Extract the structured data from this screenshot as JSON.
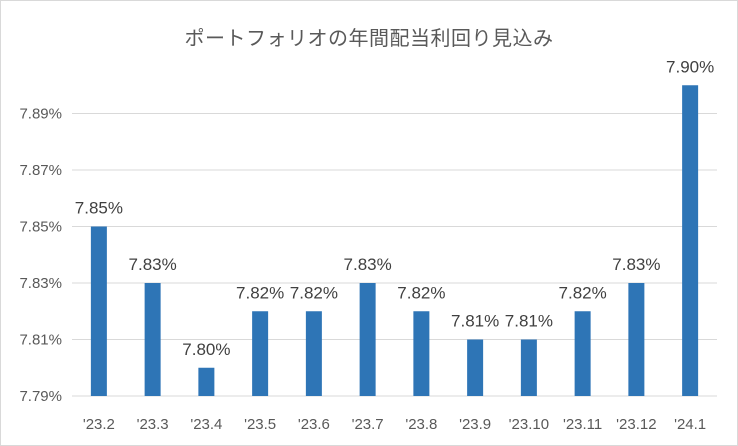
{
  "chart_data": {
    "type": "bar",
    "title": "ポートフォリオの年間配当利回り見込み",
    "categories": [
      "'23.2",
      "'23.3",
      "'23.4",
      "'23.5",
      "'23.6",
      "'23.7",
      "'23.8",
      "'23.9",
      "'23.10",
      "'23.11",
      "'23.12",
      "'24.1"
    ],
    "values": [
      7.85,
      7.83,
      7.8,
      7.82,
      7.82,
      7.83,
      7.82,
      7.81,
      7.81,
      7.82,
      7.83,
      7.9
    ],
    "data_labels": [
      "7.85%",
      "7.83%",
      "7.80%",
      "7.82%",
      "7.82%",
      "7.83%",
      "7.82%",
      "7.81%",
      "7.81%",
      "7.82%",
      "7.83%",
      "7.90%"
    ],
    "ylim": [
      7.79,
      7.9
    ],
    "yticks": [
      7.79,
      7.81,
      7.83,
      7.85,
      7.87,
      7.89
    ],
    "ytick_labels": [
      "7.79%",
      "7.81%",
      "7.83%",
      "7.85%",
      "7.87%",
      "7.89%"
    ],
    "xlabel": "",
    "ylabel": "",
    "grid": true,
    "legend": false,
    "bar_color": "#2e75b6",
    "grid_color": "#d9d9d9"
  }
}
